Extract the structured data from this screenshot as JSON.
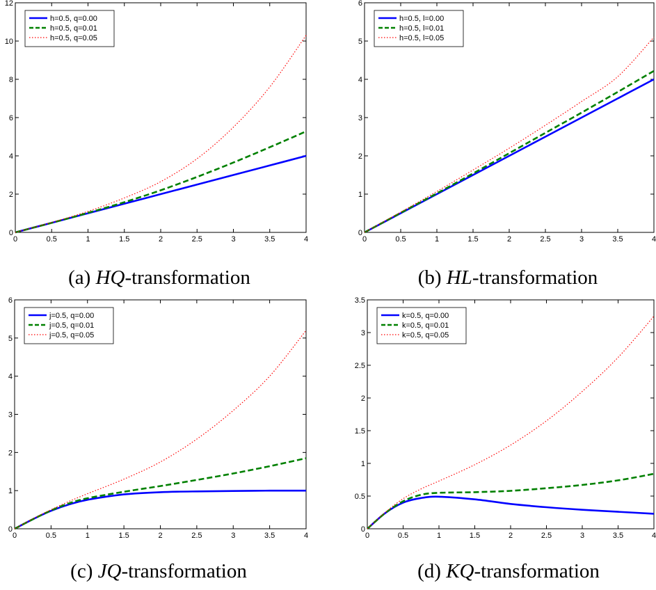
{
  "chart_data": [
    {
      "type": "line",
      "caption": {
        "prefix": "(a) ",
        "math": "HQ",
        "suffix": "-transformation"
      },
      "xlim": [
        0,
        4
      ],
      "ylim": [
        0,
        12
      ],
      "xticks": [
        0,
        0.5,
        1,
        1.5,
        2,
        2.5,
        3,
        3.5,
        4
      ],
      "yticks": [
        0,
        2,
        4,
        6,
        8,
        10,
        12
      ],
      "x": [
        0,
        0.5,
        1,
        1.5,
        2,
        2.5,
        3,
        3.5,
        4
      ],
      "legend": "top-left",
      "series": [
        {
          "name": "h=0.5, q=0.00",
          "style": "solid",
          "color": "#0000ff",
          "values": [
            0,
            0.5,
            1.0,
            1.5,
            2.0,
            2.5,
            3.0,
            3.5,
            4.0
          ]
        },
        {
          "name": "h=0.5, q=0.01",
          "style": "dashed",
          "color": "#008000",
          "values": [
            0,
            0.5,
            1.02,
            1.58,
            2.2,
            2.9,
            3.65,
            4.45,
            5.28
          ]
        },
        {
          "name": "h=0.5, q=0.05",
          "style": "dotted",
          "color": "#ff0000",
          "values": [
            0,
            0.52,
            1.1,
            1.8,
            2.65,
            3.85,
            5.5,
            7.6,
            10.3
          ]
        }
      ]
    },
    {
      "type": "line",
      "caption": {
        "prefix": "(b) ",
        "math": "HL",
        "suffix": "-transformation"
      },
      "xlim": [
        0,
        4
      ],
      "ylim": [
        0,
        6
      ],
      "xticks": [
        0,
        0.5,
        1,
        1.5,
        2,
        2.5,
        3,
        3.5,
        4
      ],
      "yticks": [
        0,
        1,
        2,
        3,
        4,
        5,
        6
      ],
      "x": [
        0,
        0.5,
        1,
        1.5,
        2,
        2.5,
        3,
        3.5,
        4
      ],
      "legend": "top-left",
      "series": [
        {
          "name": "h=0.5, l=0.00",
          "style": "solid",
          "color": "#0000ff",
          "values": [
            0,
            0.5,
            1.0,
            1.5,
            2.0,
            2.5,
            3.0,
            3.5,
            4.0
          ]
        },
        {
          "name": "h=0.5, l=0.01",
          "style": "dashed",
          "color": "#008000",
          "values": [
            0,
            0.51,
            1.02,
            1.54,
            2.07,
            2.6,
            3.13,
            3.67,
            4.22
          ]
        },
        {
          "name": "h=0.5, l=0.05",
          "style": "dotted",
          "color": "#ff0000",
          "values": [
            0,
            0.53,
            1.07,
            1.63,
            2.2,
            2.8,
            3.42,
            4.07,
            5.1
          ]
        }
      ]
    },
    {
      "type": "line",
      "caption": {
        "prefix": "(c) ",
        "math": "JQ",
        "suffix": "-transformation"
      },
      "xlim": [
        0,
        4
      ],
      "ylim": [
        0,
        6
      ],
      "xticks": [
        0,
        0.5,
        1,
        1.5,
        2,
        2.5,
        3,
        3.5,
        4
      ],
      "yticks": [
        0,
        1,
        2,
        3,
        4,
        5,
        6
      ],
      "x": [
        0,
        0.25,
        0.5,
        0.75,
        1,
        1.5,
        2,
        2.5,
        3,
        3.5,
        4
      ],
      "legend": "top-left",
      "series": [
        {
          "name": "j=0.5, q=0.00",
          "style": "solid",
          "color": "#0000ff",
          "values": [
            0,
            0.25,
            0.47,
            0.64,
            0.76,
            0.9,
            0.96,
            0.98,
            0.99,
            1.0,
            1.0
          ]
        },
        {
          "name": "j=0.5, q=0.01",
          "style": "dashed",
          "color": "#008000",
          "values": [
            0,
            0.25,
            0.48,
            0.67,
            0.8,
            0.97,
            1.12,
            1.28,
            1.45,
            1.64,
            1.85
          ]
        },
        {
          "name": "j=0.5, q=0.05",
          "style": "dotted",
          "color": "#ff0000",
          "values": [
            0,
            0.26,
            0.5,
            0.72,
            0.92,
            1.3,
            1.75,
            2.35,
            3.1,
            4.0,
            5.2
          ]
        }
      ]
    },
    {
      "type": "line",
      "caption": {
        "prefix": "(d) ",
        "math": "KQ",
        "suffix": "-transformation"
      },
      "xlim": [
        0,
        4
      ],
      "ylim": [
        0,
        3.5
      ],
      "xticks": [
        0,
        0.5,
        1,
        1.5,
        2,
        2.5,
        3,
        3.5,
        4
      ],
      "yticks": [
        0,
        0.5,
        1,
        1.5,
        2,
        2.5,
        3,
        3.5
      ],
      "x": [
        0,
        0.25,
        0.5,
        0.75,
        1,
        1.5,
        2,
        2.5,
        3,
        3.5,
        4
      ],
      "legend": "top-left",
      "series": [
        {
          "name": "k=0.5, q=0.00",
          "style": "solid",
          "color": "#0000ff",
          "values": [
            0,
            0.24,
            0.4,
            0.47,
            0.49,
            0.45,
            0.38,
            0.33,
            0.29,
            0.26,
            0.23
          ]
        },
        {
          "name": "k=0.5, q=0.01",
          "style": "dashed",
          "color": "#008000",
          "values": [
            0,
            0.24,
            0.42,
            0.52,
            0.55,
            0.56,
            0.58,
            0.62,
            0.67,
            0.74,
            0.84
          ]
        },
        {
          "name": "k=0.5, q=0.05",
          "style": "dotted",
          "color": "#ff0000",
          "values": [
            0,
            0.25,
            0.46,
            0.61,
            0.73,
            0.98,
            1.28,
            1.65,
            2.1,
            2.62,
            3.25
          ]
        }
      ]
    }
  ]
}
